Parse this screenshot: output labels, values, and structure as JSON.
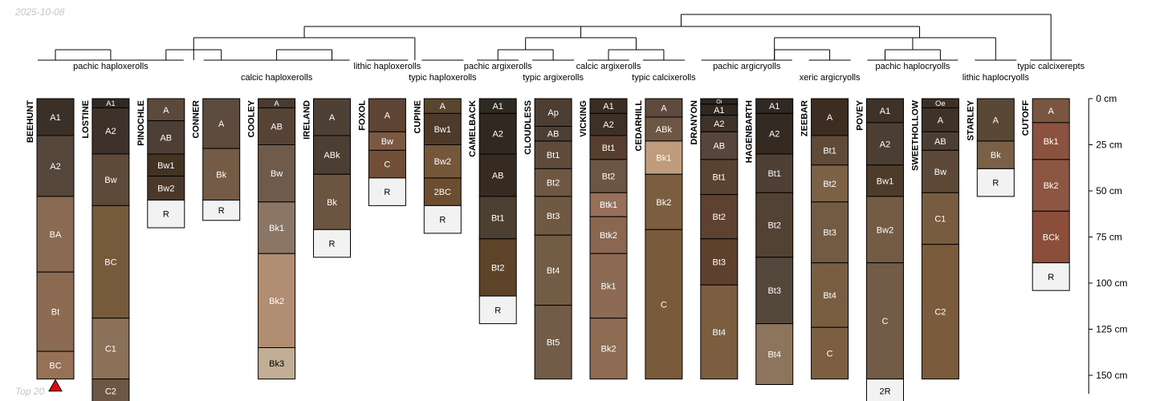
{
  "date_text": "2025-10-08",
  "footer_text": "Top 20",
  "depth_axis": {
    "unit": "cm",
    "max_depth": 160,
    "ticks": [
      {
        "depth": 0,
        "label": "0 cm"
      },
      {
        "depth": 25,
        "label": "25 cm"
      },
      {
        "depth": 50,
        "label": "50 cm"
      },
      {
        "depth": 75,
        "label": "75 cm"
      },
      {
        "depth": 100,
        "label": "100 cm"
      },
      {
        "depth": 125,
        "label": "125 cm"
      },
      {
        "depth": 150,
        "label": "150 cm"
      }
    ]
  },
  "profiles": [
    {
      "name": "BEEHUNT",
      "marker": true,
      "horizons": [
        {
          "name": "A1",
          "top": 0,
          "bottom": 20,
          "color": "#3b3027"
        },
        {
          "name": "A2",
          "top": 20,
          "bottom": 53,
          "color": "#55473b"
        },
        {
          "name": "BA",
          "top": 53,
          "bottom": 94,
          "color": "#8a6a52"
        },
        {
          "name": "Bt",
          "top": 94,
          "bottom": 137,
          "color": "#8c6b52"
        },
        {
          "name": "BC",
          "top": 137,
          "bottom": 152,
          "color": "#967155"
        }
      ]
    },
    {
      "name": "LOSTINE",
      "horizons": [
        {
          "name": "A1",
          "top": 0,
          "bottom": 5,
          "color": "#2f2823"
        },
        {
          "name": "A2",
          "top": 5,
          "bottom": 30,
          "color": "#3d3129"
        },
        {
          "name": "Bw",
          "top": 30,
          "bottom": 58,
          "color": "#5d4a38"
        },
        {
          "name": "BC",
          "top": 58,
          "bottom": 119,
          "color": "#765a3c"
        },
        {
          "name": "C1",
          "top": 119,
          "bottom": 152,
          "color": "#8a7158"
        },
        {
          "name": "C2",
          "top": 152,
          "bottom": 165,
          "color": "#6d5744"
        }
      ]
    },
    {
      "name": "PINOCHLE",
      "horizons": [
        {
          "name": "A",
          "top": 0,
          "bottom": 12,
          "color": "#5b4a3c"
        },
        {
          "name": "AB",
          "top": 12,
          "bottom": 30,
          "color": "#4d3f35"
        },
        {
          "name": "Bw1",
          "top": 30,
          "bottom": 42,
          "color": "#433322"
        },
        {
          "name": "Bw2",
          "top": 42,
          "bottom": 55,
          "color": "#4b3828"
        },
        {
          "name": "R",
          "top": 55,
          "bottom": 70,
          "color": "#f2f2f2"
        }
      ]
    },
    {
      "name": "CONNER",
      "horizons": [
        {
          "name": "A",
          "top": 0,
          "bottom": 27,
          "color": "#5d4b3d"
        },
        {
          "name": "Bk",
          "top": 27,
          "bottom": 55,
          "color": "#735b45"
        },
        {
          "name": "R",
          "top": 55,
          "bottom": 66,
          "color": "#f2f2f2"
        }
      ]
    },
    {
      "name": "COOLEY",
      "horizons": [
        {
          "name": "A",
          "top": 0,
          "bottom": 5,
          "color": "#4a3b30"
        },
        {
          "name": "AB",
          "top": 5,
          "bottom": 25,
          "color": "#554436"
        },
        {
          "name": "Bw",
          "top": 25,
          "bottom": 56,
          "color": "#6f5b4b"
        },
        {
          "name": "Bk1",
          "top": 56,
          "bottom": 84,
          "color": "#8b7564"
        },
        {
          "name": "Bk2",
          "top": 84,
          "bottom": 135,
          "color": "#b18e71"
        },
        {
          "name": "Bk3",
          "top": 135,
          "bottom": 152,
          "color": "#c2ad96"
        }
      ]
    },
    {
      "name": "IRELAND",
      "horizons": [
        {
          "name": "A",
          "top": 0,
          "bottom": 20,
          "color": "#4e4034"
        },
        {
          "name": "ABk",
          "top": 20,
          "bottom": 41,
          "color": "#4c3e32"
        },
        {
          "name": "Bk",
          "top": 41,
          "bottom": 71,
          "color": "#6b5541"
        },
        {
          "name": "R",
          "top": 71,
          "bottom": 86,
          "color": "#f2f2f2"
        }
      ]
    },
    {
      "name": "FOXOL",
      "horizons": [
        {
          "name": "A",
          "top": 0,
          "bottom": 18,
          "color": "#5e4434"
        },
        {
          "name": "Bw",
          "top": 18,
          "bottom": 28,
          "color": "#7a5841"
        },
        {
          "name": "C",
          "top": 28,
          "bottom": 43,
          "color": "#704f36"
        },
        {
          "name": "R",
          "top": 43,
          "bottom": 58,
          "color": "#f2f2f2"
        }
      ]
    },
    {
      "name": "CUPINE",
      "horizons": [
        {
          "name": "A",
          "top": 0,
          "bottom": 8,
          "color": "#59462f"
        },
        {
          "name": "Bw1",
          "top": 8,
          "bottom": 25,
          "color": "#4e3a2a"
        },
        {
          "name": "Bw2",
          "top": 25,
          "bottom": 43,
          "color": "#755739"
        },
        {
          "name": "2BC",
          "top": 43,
          "bottom": 58,
          "color": "#6d4d30"
        },
        {
          "name": "R",
          "top": 58,
          "bottom": 73,
          "color": "#f2f2f2"
        }
      ]
    },
    {
      "name": "CAMELBACK",
      "horizons": [
        {
          "name": "A1",
          "top": 0,
          "bottom": 8,
          "color": "#2f2923"
        },
        {
          "name": "A2",
          "top": 8,
          "bottom": 30,
          "color": "#312821"
        },
        {
          "name": "AB",
          "top": 30,
          "bottom": 53,
          "color": "#372b21"
        },
        {
          "name": "Bt1",
          "top": 53,
          "bottom": 76,
          "color": "#4d3f32"
        },
        {
          "name": "Bt2",
          "top": 76,
          "bottom": 107,
          "color": "#5d4429"
        },
        {
          "name": "R",
          "top": 107,
          "bottom": 122,
          "color": "#f2f2f2"
        }
      ]
    },
    {
      "name": "CLOUDLESS",
      "horizons": [
        {
          "name": "Ap",
          "top": 0,
          "bottom": 15,
          "color": "#4c3e32"
        },
        {
          "name": "AB",
          "top": 15,
          "bottom": 23,
          "color": "#4d3f33"
        },
        {
          "name": "Bt1",
          "top": 23,
          "bottom": 38,
          "color": "#5e4b3b"
        },
        {
          "name": "Bt2",
          "top": 38,
          "bottom": 53,
          "color": "#6f5843"
        },
        {
          "name": "Bt3",
          "top": 53,
          "bottom": 74,
          "color": "#705943"
        },
        {
          "name": "Bt4",
          "top": 74,
          "bottom": 112,
          "color": "#735c46"
        },
        {
          "name": "Bt5",
          "top": 112,
          "bottom": 152,
          "color": "#735c47"
        }
      ]
    },
    {
      "name": "VICKING",
      "horizons": [
        {
          "name": "A1",
          "top": 0,
          "bottom": 8,
          "color": "#3a2d24"
        },
        {
          "name": "A2",
          "top": 8,
          "bottom": 20,
          "color": "#3d3027"
        },
        {
          "name": "Bt1",
          "top": 20,
          "bottom": 33,
          "color": "#563f2f"
        },
        {
          "name": "Bt2",
          "top": 33,
          "bottom": 51,
          "color": "#6c5542"
        },
        {
          "name": "Btk1",
          "top": 51,
          "bottom": 64,
          "color": "#97705a"
        },
        {
          "name": "Btk2",
          "top": 64,
          "bottom": 84,
          "color": "#8a6751"
        },
        {
          "name": "Bk1",
          "top": 84,
          "bottom": 119,
          "color": "#8c6a53"
        },
        {
          "name": "Bk2",
          "top": 119,
          "bottom": 152,
          "color": "#8e6c54"
        }
      ]
    },
    {
      "name": "CEDARHILL",
      "horizons": [
        {
          "name": "A",
          "top": 0,
          "bottom": 10,
          "color": "#5e4b3d"
        },
        {
          "name": "ABk",
          "top": 10,
          "bottom": 23,
          "color": "#6d5744"
        },
        {
          "name": "Bk1",
          "top": 23,
          "bottom": 41,
          "color": "#c19c7c"
        },
        {
          "name": "Bk2",
          "top": 41,
          "bottom": 71,
          "color": "#7b5d40"
        },
        {
          "name": "C",
          "top": 71,
          "bottom": 152,
          "color": "#795b3b"
        }
      ]
    },
    {
      "name": "DRANYON",
      "horizons": [
        {
          "name": "Oi",
          "top": 0,
          "bottom": 3,
          "color": "#2c241e"
        },
        {
          "name": "A1",
          "top": 3,
          "bottom": 9,
          "color": "#2f2721"
        },
        {
          "name": "A2",
          "top": 9,
          "bottom": 18,
          "color": "#3e3229"
        },
        {
          "name": "AB",
          "top": 18,
          "bottom": 33,
          "color": "#56453a"
        },
        {
          "name": "Bt1",
          "top": 33,
          "bottom": 52,
          "color": "#5a4230"
        },
        {
          "name": "Bt2",
          "top": 52,
          "bottom": 76,
          "color": "#5e4130"
        },
        {
          "name": "Bt3",
          "top": 76,
          "bottom": 101,
          "color": "#5d412d"
        },
        {
          "name": "Bt4",
          "top": 101,
          "bottom": 152,
          "color": "#7b5d3f"
        }
      ]
    },
    {
      "name": "HAGENBARTH",
      "horizons": [
        {
          "name": "A1",
          "top": 0,
          "bottom": 8,
          "color": "#2f2823"
        },
        {
          "name": "A2",
          "top": 8,
          "bottom": 30,
          "color": "#342a22"
        },
        {
          "name": "Bt1",
          "top": 30,
          "bottom": 51,
          "color": "#4e4034"
        },
        {
          "name": "Bt2",
          "top": 51,
          "bottom": 86,
          "color": "#514234"
        },
        {
          "name": "Bt3",
          "top": 86,
          "bottom": 122,
          "color": "#54473b"
        },
        {
          "name": "Bt4",
          "top": 122,
          "bottom": 155,
          "color": "#8d755d"
        }
      ]
    },
    {
      "name": "ZEEBAR",
      "horizons": [
        {
          "name": "A",
          "top": 0,
          "bottom": 20,
          "color": "#3b2d22"
        },
        {
          "name": "Bt1",
          "top": 20,
          "bottom": 36,
          "color": "#5e4a36"
        },
        {
          "name": "Bt2",
          "top": 36,
          "bottom": 56,
          "color": "#7d6146"
        },
        {
          "name": "Bt3",
          "top": 56,
          "bottom": 89,
          "color": "#735b43"
        },
        {
          "name": "Bt4",
          "top": 89,
          "bottom": 124,
          "color": "#7a5e42"
        },
        {
          "name": "C",
          "top": 124,
          "bottom": 152,
          "color": "#7c5f41"
        }
      ]
    },
    {
      "name": "POVEY",
      "horizons": [
        {
          "name": "A1",
          "top": 0,
          "bottom": 13,
          "color": "#3f3229"
        },
        {
          "name": "A2",
          "top": 13,
          "bottom": 36,
          "color": "#4c3e33"
        },
        {
          "name": "Bw1",
          "top": 36,
          "bottom": 53,
          "color": "#4e3c2b"
        },
        {
          "name": "Bw2",
          "top": 53,
          "bottom": 89,
          "color": "#735b45"
        },
        {
          "name": "C",
          "top": 89,
          "bottom": 152,
          "color": "#735c47"
        },
        {
          "name": "2R",
          "top": 152,
          "bottom": 165,
          "color": "#f2f2f2"
        }
      ]
    },
    {
      "name": "SWEETHOLLOW",
      "horizons": [
        {
          "name": "Oe",
          "top": 0,
          "bottom": 5,
          "color": "#3b3028"
        },
        {
          "name": "A",
          "top": 5,
          "bottom": 18,
          "color": "#3f3229"
        },
        {
          "name": "AB",
          "top": 18,
          "bottom": 28,
          "color": "#4c3e32"
        },
        {
          "name": "Bw",
          "top": 28,
          "bottom": 51,
          "color": "#5d4837"
        },
        {
          "name": "C1",
          "top": 51,
          "bottom": 79,
          "color": "#785c3f"
        },
        {
          "name": "C2",
          "top": 79,
          "bottom": 152,
          "color": "#7a5c3c"
        }
      ]
    },
    {
      "name": "STARLEY",
      "horizons": [
        {
          "name": "A",
          "top": 0,
          "bottom": 23,
          "color": "#5a4837"
        },
        {
          "name": "Bk",
          "top": 23,
          "bottom": 38,
          "color": "#7a6046"
        },
        {
          "name": "R",
          "top": 38,
          "bottom": 53,
          "color": "#f2f2f2"
        }
      ]
    },
    {
      "name": "CUTOFF",
      "horizons": [
        {
          "name": "A",
          "top": 0,
          "bottom": 13,
          "color": "#7a5641"
        },
        {
          "name": "Bk1",
          "top": 13,
          "bottom": 33,
          "color": "#8c5240"
        },
        {
          "name": "Bk2",
          "top": 33,
          "bottom": 61,
          "color": "#8d5642"
        },
        {
          "name": "BCk",
          "top": 61,
          "bottom": 89,
          "color": "#8a4e3b"
        },
        {
          "name": "R",
          "top": 89,
          "bottom": 104,
          "color": "#f2f2f2"
        }
      ]
    }
  ],
  "subgroups": [
    {
      "label": "pachic haploxerolls",
      "members": [
        0,
        1,
        2
      ]
    },
    {
      "label": "calcic haploxerolls",
      "members": [
        3,
        4,
        5
      ]
    },
    {
      "label": "lithic haploxerolls",
      "members": [
        6
      ]
    },
    {
      "label": "typic haploxerolls",
      "members": [
        7
      ]
    },
    {
      "label": "pachic argixerolls",
      "members": [
        8
      ]
    },
    {
      "label": "typic argixerolls",
      "members": [
        9
      ]
    },
    {
      "label": "calcic argixerolls",
      "members": [
        10
      ]
    },
    {
      "label": "typic calcixerolls",
      "members": [
        11
      ]
    },
    {
      "label": "pachic argicryolls",
      "members": [
        12,
        13
      ]
    },
    {
      "label": "xeric argicryolls",
      "members": [
        14
      ]
    },
    {
      "label": "pachic haplocryolls",
      "members": [
        15,
        16
      ]
    },
    {
      "label": "lithic haplocryolls",
      "members": [
        17
      ]
    },
    {
      "label": "typic calcixerepts",
      "members": [
        18
      ]
    }
  ]
}
